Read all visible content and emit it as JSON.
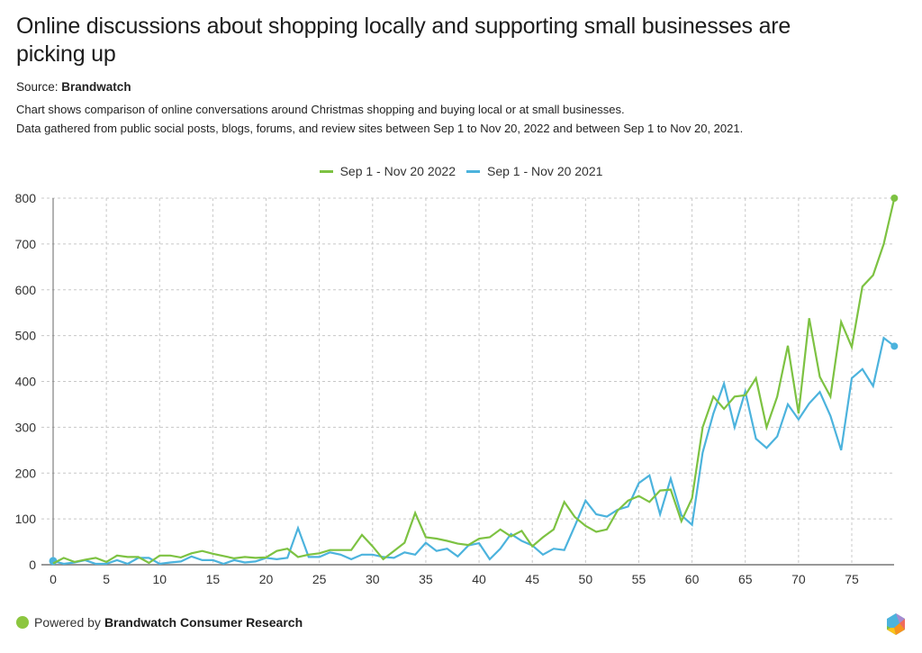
{
  "header": {
    "title": "Online discussions about shopping locally and supporting small businesses are picking up",
    "source_label": "Source:",
    "source_name": "Brandwatch",
    "description_line1": "Chart shows comparison of online conversations around Christmas shopping and buying local or at small businesses.",
    "description_line2": "Data gathered from public social posts, blogs, forums, and review sites between Sep 1 to Nov 20, 2022 and between Sep 1 to Nov 20, 2021."
  },
  "footer": {
    "powered_by": "Powered by",
    "brand": "Brandwatch Consumer Research",
    "dot_color": "#8cc63f",
    "logo_icon": "brandwatch-hexagon-logo"
  },
  "chart_data": {
    "type": "line",
    "title": "Online discussions about shopping locally and supporting small businesses are picking up",
    "xlabel": "",
    "ylabel": "",
    "xlim": [
      0,
      79
    ],
    "ylim": [
      0,
      800
    ],
    "x_ticks": [
      0,
      5,
      10,
      15,
      20,
      25,
      30,
      35,
      40,
      45,
      50,
      55,
      60,
      65,
      70,
      75
    ],
    "y_ticks": [
      0,
      100,
      200,
      300,
      400,
      500,
      600,
      700,
      800
    ],
    "grid": true,
    "legend_position": "top-center",
    "series": [
      {
        "name": "Sep 1 - Nov 20 2022",
        "color": "#7dc242",
        "end_marker": true,
        "values": [
          3,
          15,
          6,
          11,
          15,
          6,
          20,
          17,
          17,
          4,
          20,
          20,
          16,
          25,
          30,
          24,
          19,
          14,
          17,
          15,
          16,
          30,
          35,
          17,
          22,
          25,
          32,
          32,
          32,
          65,
          40,
          12,
          30,
          48,
          113,
          60,
          57,
          52,
          46,
          43,
          57,
          60,
          77,
          62,
          74,
          40,
          60,
          77,
          137,
          104,
          85,
          72,
          77,
          118,
          140,
          150,
          137,
          162,
          164,
          95,
          145,
          300,
          367,
          340,
          367,
          370,
          407,
          300,
          367,
          478,
          330,
          538,
          410,
          367,
          530,
          475,
          607,
          632,
          700,
          800
        ]
      },
      {
        "name": "Sep 1 - Nov 20 2021",
        "color": "#4cb3dd",
        "end_marker": true,
        "start_marker": true,
        "values": [
          8,
          2,
          5,
          10,
          2,
          2,
          10,
          2,
          15,
          15,
          2,
          5,
          7,
          18,
          10,
          10,
          2,
          10,
          5,
          7,
          15,
          12,
          15,
          80,
          17,
          17,
          27,
          22,
          12,
          22,
          22,
          17,
          15,
          27,
          22,
          48,
          30,
          35,
          18,
          42,
          47,
          12,
          35,
          67,
          52,
          42,
          22,
          35,
          32,
          85,
          140,
          110,
          105,
          120,
          127,
          178,
          195,
          110,
          188,
          108,
          87,
          245,
          330,
          395,
          300,
          378,
          275,
          255,
          280,
          350,
          317,
          352,
          377,
          325,
          250,
          407,
          427,
          390,
          495,
          477
        ]
      }
    ]
  }
}
